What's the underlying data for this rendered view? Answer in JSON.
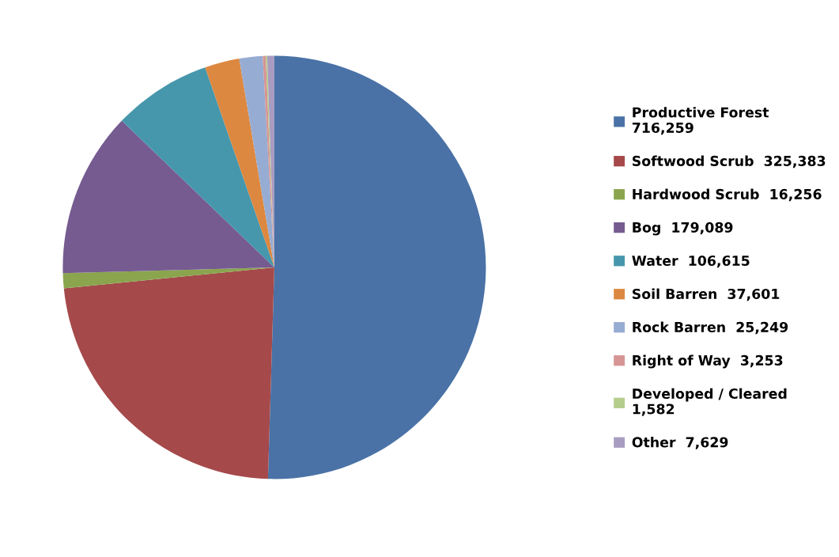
{
  "chart_data": {
    "type": "pie",
    "categories": [
      "Productive Forest",
      "Softwood Scrub",
      "Hardwood Scrub",
      "Bog",
      "Water",
      "Soil Barren",
      "Rock Barren",
      "Right of Way",
      "Developed / Cleared",
      "Other"
    ],
    "values": [
      716259,
      325383,
      16256,
      179089,
      106615,
      37601,
      25249,
      3253,
      1582,
      7629
    ],
    "value_labels": [
      "716,259",
      "325,383",
      "16,256",
      "179,089",
      "106,615",
      "37,601",
      "25,249",
      "3,253",
      "1,582",
      "7,629"
    ],
    "colors": [
      "#4a72a6",
      "#a5494a",
      "#8aa54e",
      "#765b91",
      "#4697ac",
      "#dc8840",
      "#97acd2",
      "#d69594",
      "#b5cd8c",
      "#a89cc0"
    ],
    "legend": "right"
  }
}
